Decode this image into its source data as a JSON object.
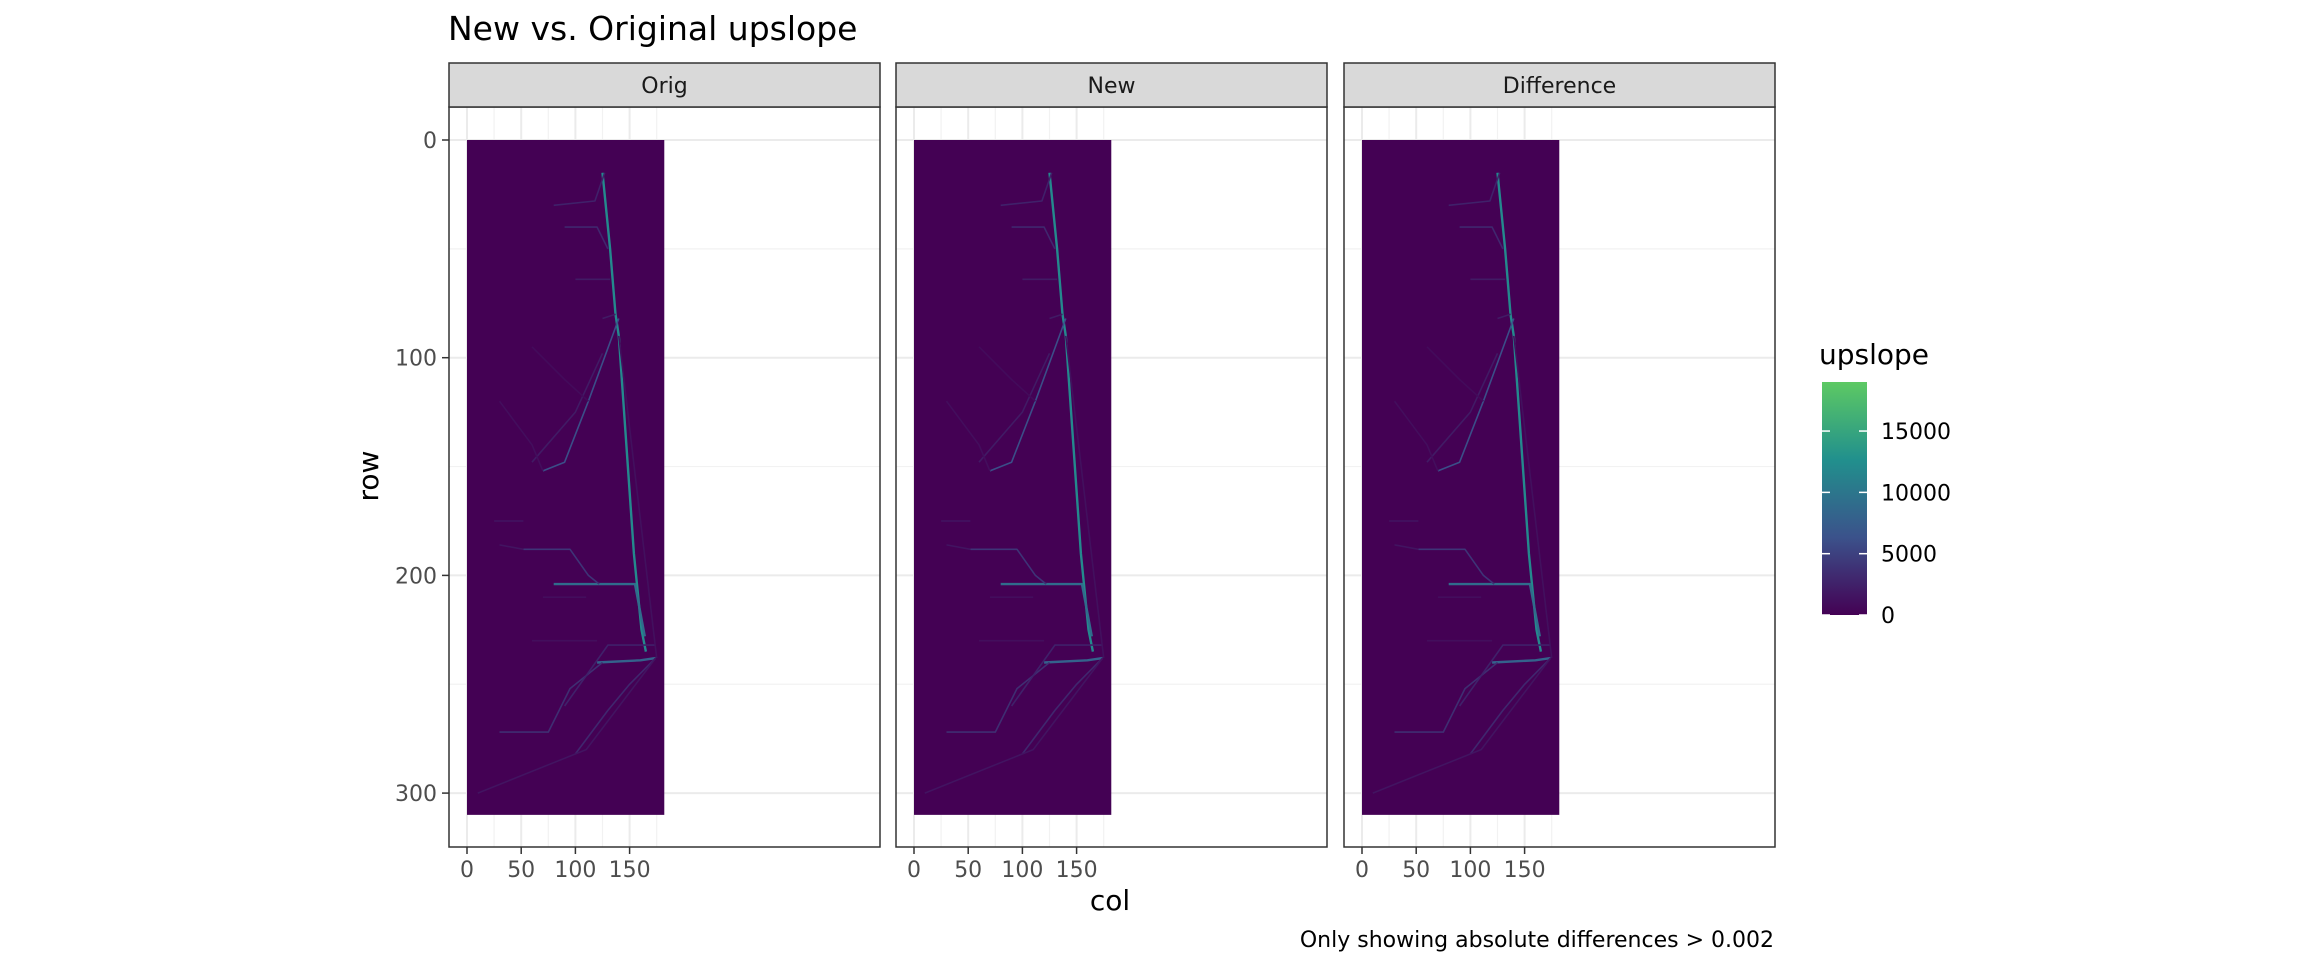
{
  "chart_data": {
    "type": "heatmap",
    "title": "New vs. Original upslope",
    "caption": "Only showing absolute differences > 0.002",
    "xlabel": "col",
    "ylabel": "row",
    "facets": [
      "Orig",
      "New",
      "Difference"
    ],
    "xlim": [
      0,
      182
    ],
    "ylim": [
      310,
      0
    ],
    "y_reversed": true,
    "x_ticks": [
      0,
      50,
      100,
      150
    ],
    "y_ticks": [
      0,
      100,
      200,
      300
    ],
    "grid": true,
    "fill_scale": {
      "name": "upslope",
      "palette": "viridis",
      "min": 0,
      "max": 19000,
      "breaks": [
        0,
        5000,
        10000,
        15000
      ],
      "colors": [
        "#440154",
        "#3b528b",
        "#21908d",
        "#5dc963"
      ]
    },
    "background_value": 0,
    "flow_lines": [
      {
        "value": 12000,
        "points": [
          [
            125,
            15
          ],
          [
            132,
            50
          ],
          [
            137,
            80
          ],
          [
            140,
            90
          ],
          [
            154,
            190
          ],
          [
            161,
            225
          ],
          [
            165,
            235
          ]
        ]
      },
      {
        "value": 9000,
        "points": [
          [
            80,
            204
          ],
          [
            122,
            204
          ],
          [
            155,
            204
          ],
          [
            164,
            228
          ]
        ]
      },
      {
        "value": 8000,
        "points": [
          [
            120,
            240
          ],
          [
            160,
            239
          ],
          [
            174,
            238
          ]
        ]
      },
      {
        "value": 6000,
        "points": [
          [
            140,
            82
          ],
          [
            112,
            120
          ],
          [
            90,
            148
          ],
          [
            70,
            152
          ]
        ]
      },
      {
        "value": 4000,
        "points": [
          [
            52,
            188
          ],
          [
            95,
            188
          ],
          [
            112,
            200
          ],
          [
            122,
            204
          ]
        ]
      },
      {
        "value": 3500,
        "points": [
          [
            30,
            272
          ],
          [
            75,
            272
          ],
          [
            95,
            252
          ],
          [
            125,
            240
          ]
        ]
      },
      {
        "value": 3000,
        "points": [
          [
            90,
            40
          ],
          [
            120,
            40
          ],
          [
            130,
            50
          ]
        ]
      },
      {
        "value": 3000,
        "points": [
          [
            100,
            282
          ],
          [
            130,
            262
          ],
          [
            150,
            250
          ],
          [
            174,
            238
          ]
        ]
      },
      {
        "value": 2500,
        "points": [
          [
            80,
            30
          ],
          [
            118,
            28
          ],
          [
            127,
            15
          ]
        ]
      },
      {
        "value": 2500,
        "points": [
          [
            90,
            260
          ],
          [
            130,
            232
          ],
          [
            174,
            232
          ]
        ]
      },
      {
        "value": 2000,
        "points": [
          [
            60,
            148
          ],
          [
            100,
            125
          ],
          [
            125,
            98
          ]
        ]
      },
      {
        "value": 2000,
        "points": [
          [
            125,
            82
          ],
          [
            137,
            80
          ]
        ]
      },
      {
        "value": 2000,
        "points": [
          [
            100,
            64
          ],
          [
            132,
            64
          ]
        ]
      },
      {
        "value": 1500,
        "points": [
          [
            25,
            175
          ],
          [
            52,
            175
          ]
        ]
      },
      {
        "value": 1500,
        "points": [
          [
            30,
            186
          ],
          [
            52,
            188
          ]
        ]
      },
      {
        "value": 1500,
        "points": [
          [
            10,
            300
          ],
          [
            110,
            280
          ],
          [
            174,
            238
          ]
        ]
      },
      {
        "value": 1200,
        "points": [
          [
            140,
            90
          ],
          [
            175,
            238
          ]
        ]
      },
      {
        "value": 1000,
        "points": [
          [
            60,
            230
          ],
          [
            120,
            230
          ]
        ]
      },
      {
        "value": 1000,
        "points": [
          [
            30,
            120
          ],
          [
            60,
            140
          ],
          [
            70,
            152
          ]
        ]
      },
      {
        "value": 1000,
        "points": [
          [
            70,
            210
          ],
          [
            110,
            210
          ]
        ]
      },
      {
        "value": 800,
        "points": [
          [
            60,
            95
          ],
          [
            90,
            110
          ],
          [
            112,
            120
          ]
        ]
      }
    ]
  }
}
